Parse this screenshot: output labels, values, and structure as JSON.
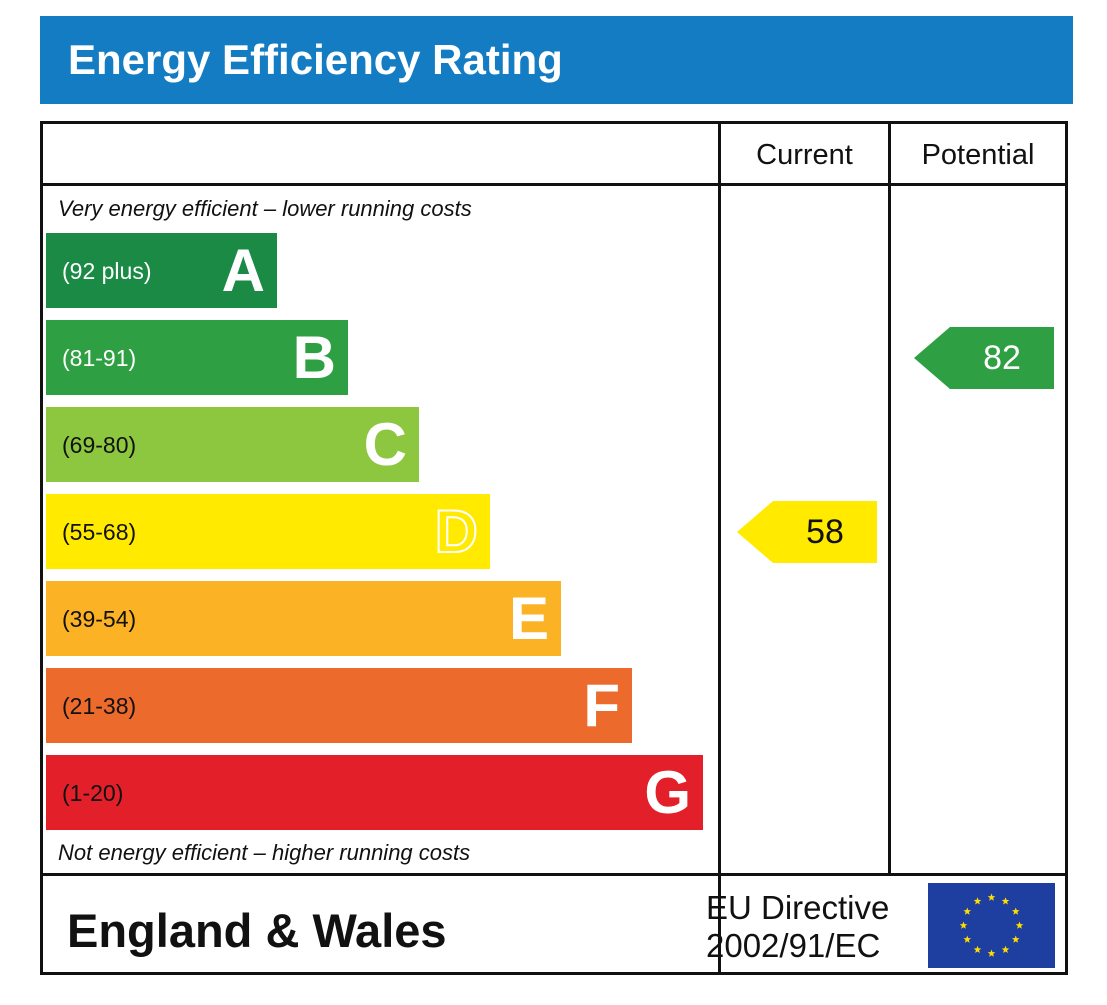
{
  "header": {
    "title": "Energy Efficiency Rating"
  },
  "columns": {
    "current": "Current",
    "potential": "Potential"
  },
  "captions": {
    "top": "Very energy efficient – lower running costs",
    "bottom": "Not energy efficient – higher running costs"
  },
  "chart_data": {
    "type": "bar",
    "title": "Energy Efficiency Rating",
    "bands": [
      {
        "letter": "A",
        "range": "(92 plus)",
        "color": "#1a8a45",
        "range_color": "#ffffff",
        "order": 1
      },
      {
        "letter": "B",
        "range": "(81-91)",
        "color": "#2ea043",
        "range_color": "#ffffff",
        "order": 2
      },
      {
        "letter": "C",
        "range": "(69-80)",
        "color": "#8dc63f",
        "range_color": "#111111",
        "order": 3
      },
      {
        "letter": "D",
        "range": "(55-68)",
        "color": "#ffea00",
        "range_color": "#111111",
        "order": 4
      },
      {
        "letter": "E",
        "range": "(39-54)",
        "color": "#fbb225",
        "range_color": "#111111",
        "order": 5
      },
      {
        "letter": "F",
        "range": "(21-38)",
        "color": "#ec6b2c",
        "range_color": "#111111",
        "order": 6
      },
      {
        "letter": "G",
        "range": "(1-20)",
        "color": "#e3202a",
        "range_color": "#111111",
        "order": 7
      }
    ],
    "current": {
      "value": 58,
      "band": "D",
      "color": "#ffea00",
      "text_color": "#111111"
    },
    "potential": {
      "value": 82,
      "band": "B",
      "color": "#2ea043",
      "text_color": "#ffffff"
    }
  },
  "footer": {
    "region": "England & Wales",
    "directive_line1": "EU Directive",
    "directive_line2": "2002/91/EC",
    "flag_icon": "eu-flag-icon"
  }
}
